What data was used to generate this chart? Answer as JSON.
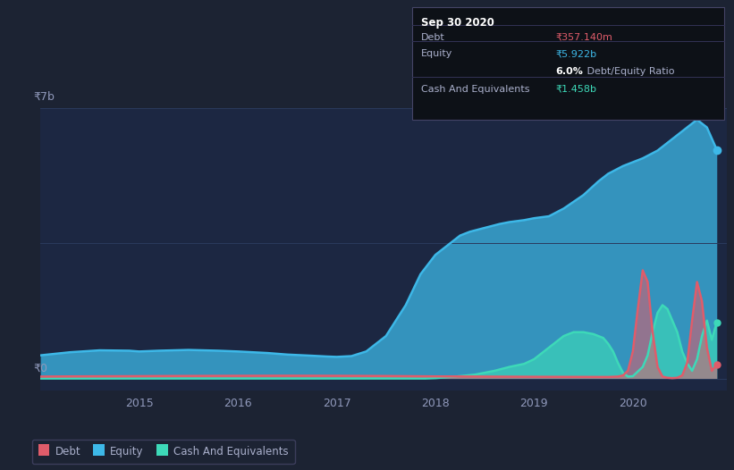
{
  "bg_color": "#1c2333",
  "plot_bg_color": "#1c2742",
  "grid_color": "#2a3a5c",
  "title_label": "₹7b",
  "zero_label": "₹0",
  "y_max": 7000,
  "y_min": -300,
  "debt_color": "#e05c6a",
  "equity_color": "#3db8e8",
  "cash_color": "#3dd9b8",
  "tooltip": {
    "date": "Sep 30 2020",
    "debt_label": "Debt",
    "debt_value": "₹357.140m",
    "equity_label": "Equity",
    "equity_value": "₹5.922b",
    "ratio_bold": "6.0%",
    "ratio_rest": " Debt/Equity Ratio",
    "cash_label": "Cash And Equivalents",
    "cash_value": "₹1.458b"
  },
  "equity_x": [
    2014.0,
    2014.3,
    2014.6,
    2014.9,
    2015.0,
    2015.2,
    2015.5,
    2015.8,
    2016.0,
    2016.3,
    2016.5,
    2016.75,
    2016.9,
    2017.0,
    2017.15,
    2017.3,
    2017.5,
    2017.7,
    2017.85,
    2018.0,
    2018.15,
    2018.25,
    2018.35,
    2018.5,
    2018.65,
    2018.75,
    2018.9,
    2019.0,
    2019.15,
    2019.3,
    2019.5,
    2019.65,
    2019.75,
    2019.9,
    2020.0,
    2020.1,
    2020.25,
    2020.4,
    2020.55,
    2020.65,
    2020.75,
    2020.85
  ],
  "equity_y": [
    600,
    680,
    730,
    720,
    700,
    720,
    740,
    720,
    700,
    660,
    620,
    590,
    570,
    560,
    580,
    700,
    1100,
    1900,
    2700,
    3200,
    3500,
    3700,
    3800,
    3900,
    4000,
    4050,
    4100,
    4150,
    4200,
    4400,
    4750,
    5100,
    5300,
    5500,
    5600,
    5700,
    5900,
    6200,
    6500,
    6700,
    6500,
    5922
  ],
  "debt_x": [
    2014.0,
    2014.3,
    2014.6,
    2014.9,
    2015.3,
    2015.7,
    2016.0,
    2016.5,
    2017.0,
    2017.5,
    2018.0,
    2018.5,
    2019.0,
    2019.5,
    2019.75,
    2019.85,
    2019.9,
    2019.95,
    2020.0,
    2020.05,
    2020.1,
    2020.15,
    2020.2,
    2020.25,
    2020.3,
    2020.35,
    2020.4,
    2020.45,
    2020.5,
    2020.55,
    2020.6,
    2020.65,
    2020.7,
    2020.75,
    2020.8,
    2020.85
  ],
  "debt_y": [
    50,
    55,
    58,
    60,
    65,
    68,
    70,
    72,
    70,
    65,
    55,
    50,
    45,
    42,
    40,
    50,
    80,
    200,
    700,
    1800,
    2800,
    2500,
    1200,
    300,
    50,
    20,
    10,
    20,
    80,
    400,
    1500,
    2500,
    2000,
    800,
    200,
    357
  ],
  "cash_x": [
    2014.0,
    2014.5,
    2015.0,
    2015.5,
    2016.0,
    2016.5,
    2017.0,
    2017.5,
    2017.75,
    2017.9,
    2018.0,
    2018.1,
    2018.2,
    2018.4,
    2018.6,
    2018.75,
    2018.9,
    2019.0,
    2019.1,
    2019.2,
    2019.3,
    2019.4,
    2019.5,
    2019.6,
    2019.7,
    2019.75,
    2019.8,
    2019.85,
    2019.9,
    2019.95,
    2020.0,
    2020.1,
    2020.15,
    2020.2,
    2020.25,
    2020.3,
    2020.35,
    2020.4,
    2020.45,
    2020.5,
    2020.55,
    2020.6,
    2020.65,
    2020.7,
    2020.75,
    2020.8,
    2020.85
  ],
  "cash_y": [
    0,
    0,
    0,
    0,
    0,
    0,
    0,
    0,
    0,
    0,
    10,
    30,
    50,
    100,
    200,
    300,
    380,
    500,
    700,
    900,
    1100,
    1200,
    1200,
    1150,
    1050,
    900,
    700,
    400,
    150,
    50,
    60,
    300,
    600,
    1200,
    1700,
    1900,
    1800,
    1500,
    1200,
    700,
    400,
    200,
    500,
    1100,
    1500,
    1000,
    1458
  ],
  "legend": [
    {
      "label": "Debt",
      "color": "#e05c6a"
    },
    {
      "label": "Equity",
      "color": "#3db8e8"
    },
    {
      "label": "Cash And Equivalents",
      "color": "#3dd9b8"
    }
  ]
}
